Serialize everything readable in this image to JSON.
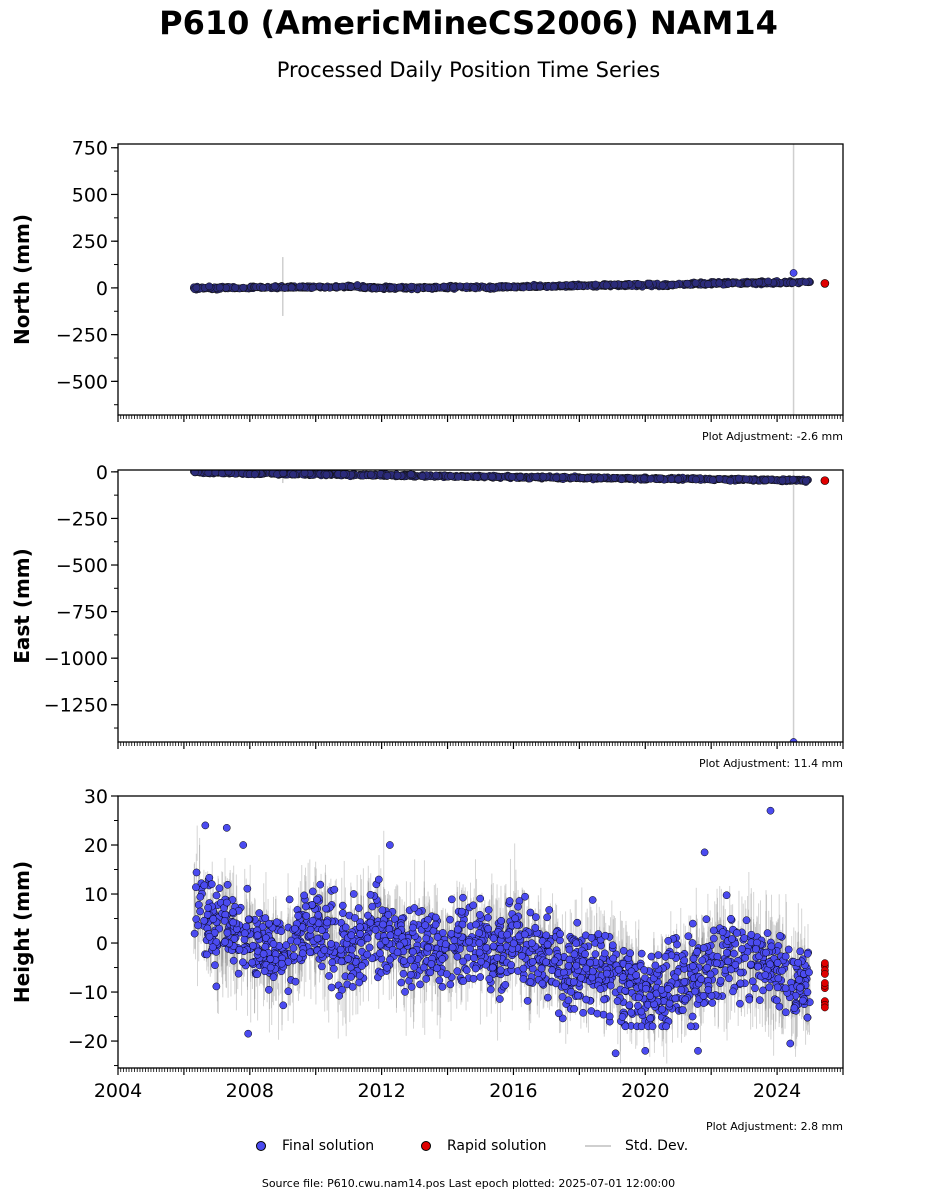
{
  "title": "P610 (AmericMineCS2006) NAM14",
  "subtitle": "Processed Daily Position Time Series",
  "legend": {
    "final": "Final solution",
    "rapid": "Rapid solution",
    "std": "Std. Dev."
  },
  "source_text": "Source file: P610.cwu.nam14.pos  Last epoch plotted: 2025-07-01 12:00:00",
  "colors": {
    "final": "#4b4bf0",
    "rapid": "#e00000",
    "std": "#cfcfcf",
    "edge": "#000000"
  },
  "chart_data": [
    {
      "type": "scatter",
      "ylabel": "North (mm)",
      "adjustment": "Plot Adjustment: -2.6 mm",
      "xlim": [
        2004,
        2026
      ],
      "ylim": [
        -680,
        770
      ],
      "yticks": [
        -500,
        -250,
        0,
        250,
        500,
        750
      ],
      "ytick_labels": [
        "−500",
        "−250",
        "0",
        "250",
        "500",
        "750"
      ],
      "grid": false,
      "series": [
        {
          "name": "Final solution",
          "x": [
            2006.3,
            2007.0,
            2008.0,
            2009.0,
            2010.0,
            2011.0,
            2012.0,
            2013.0,
            2014.0,
            2015.0,
            2016.0,
            2017.0,
            2018.0,
            2019.0,
            2020.0,
            2021.0,
            2021.7,
            2022.0,
            2023.0,
            2024.0,
            2024.5,
            2025.0
          ],
          "y": [
            -2,
            0,
            3,
            4,
            5,
            6,
            0,
            1,
            2,
            3,
            6,
            8,
            12,
            14,
            16,
            18,
            22,
            24,
            26,
            28,
            29,
            30
          ]
        },
        {
          "name": "Rapid solution",
          "x": [
            2025.45
          ],
          "y": [
            24
          ]
        }
      ],
      "outliers": [
        {
          "x": 2024.5,
          "y": 80
        }
      ],
      "std_spikes": [
        {
          "x": 2009.0,
          "lo": -150,
          "hi": 165
        },
        {
          "x": 2024.5,
          "lo": -680,
          "hi": 770
        }
      ]
    },
    {
      "type": "scatter",
      "ylabel": "East (mm)",
      "adjustment": "Plot Adjustment: 11.4 mm",
      "xlim": [
        2004,
        2026
      ],
      "ylim": [
        -1450,
        10
      ],
      "yticks": [
        -1250,
        -1000,
        -750,
        -500,
        -250,
        0
      ],
      "ytick_labels": [
        "−1250",
        "−1000",
        "−750",
        "−500",
        "−250",
        "0"
      ],
      "grid": false,
      "series": [
        {
          "name": "Final solution",
          "x": [
            2006.3,
            2008.0,
            2010.0,
            2012.0,
            2014.0,
            2016.0,
            2018.0,
            2020.0,
            2021.7,
            2022.0,
            2024.0,
            2025.0
          ],
          "y": [
            -2,
            -8,
            -13,
            -18,
            -23,
            -27,
            -32,
            -36,
            -38,
            -40,
            -44,
            -47
          ]
        },
        {
          "name": "Rapid solution",
          "x": [
            2025.45
          ],
          "y": [
            -47
          ]
        }
      ],
      "outliers": [
        {
          "x": 2024.5,
          "y": -1450
        }
      ],
      "std_spikes": [
        {
          "x": 2009.0,
          "lo": -60,
          "hi": 5
        },
        {
          "x": 2024.5,
          "lo": -1450,
          "hi": 10
        }
      ]
    },
    {
      "type": "scatter",
      "ylabel": "Height (mm)",
      "adjustment": "Plot Adjustment: 2.8 mm",
      "xlim": [
        2004,
        2026
      ],
      "ylim": [
        -25.5,
        30
      ],
      "yticks": [
        -20,
        -10,
        0,
        10,
        20,
        30
      ],
      "ytick_labels": [
        "−20",
        "−10",
        "0",
        "10",
        "20",
        "30"
      ],
      "xticks": [
        2004,
        2008,
        2012,
        2016,
        2020,
        2024
      ],
      "xtick_labels": [
        "2004",
        "2008",
        "2012",
        "2016",
        "2020",
        "2024"
      ],
      "grid": false,
      "series": [
        {
          "name": "Final solution",
          "x": [
            2006.3,
            2006.7,
            2007.0,
            2007.5,
            2008.0,
            2008.5,
            2009.0,
            2009.5,
            2010.0,
            2010.5,
            2011.0,
            2011.5,
            2012.0,
            2012.5,
            2013.0,
            2013.5,
            2014.0,
            2014.5,
            2015.0,
            2015.5,
            2016.0,
            2016.5,
            2017.0,
            2017.5,
            2018.0,
            2018.5,
            2019.0,
            2019.5,
            2020.0,
            2020.5,
            2021.0,
            2021.5,
            2022.0,
            2022.5,
            2023.0,
            2023.5,
            2024.0,
            2024.5,
            2025.0
          ],
          "y": [
            8,
            6,
            2,
            4,
            0,
            -2,
            -4,
            2,
            4,
            0,
            -3,
            2,
            3,
            0,
            -1,
            0,
            -2,
            0,
            1,
            -3,
            2,
            -3,
            -2,
            -6,
            -5,
            -4,
            -7,
            -8,
            -11,
            -9,
            -6,
            -7,
            -4,
            -3,
            -2,
            -4,
            -6,
            -8,
            -8
          ]
        },
        {
          "name": "Rapid solution",
          "x": [
            2025.45
          ],
          "y": [
            -10
          ]
        }
      ],
      "envelope": {
        "lo": -13,
        "hi": 13
      },
      "outliers": [
        {
          "x": 2006.65,
          "y": 24
        },
        {
          "x": 2007.3,
          "y": 23.5
        },
        {
          "x": 2007.8,
          "y": 20
        },
        {
          "x": 2012.25,
          "y": 20
        },
        {
          "x": 2021.8,
          "y": 18.5
        },
        {
          "x": 2023.8,
          "y": 27
        },
        {
          "x": 2019.1,
          "y": -22.5
        },
        {
          "x": 2020.0,
          "y": -22
        },
        {
          "x": 2024.4,
          "y": -20.5
        },
        {
          "x": 2007.95,
          "y": -18.5
        },
        {
          "x": 2021.6,
          "y": -22
        }
      ]
    }
  ]
}
